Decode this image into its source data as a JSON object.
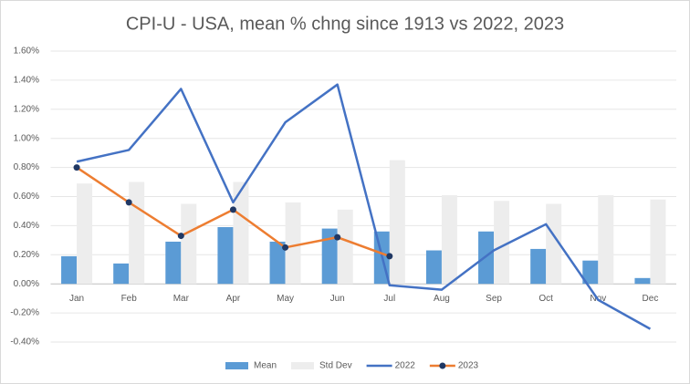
{
  "chart_data": {
    "type": "bar_line",
    "title": "CPI-U - USA, mean % chng since 1913 vs 2022, 2023",
    "categories": [
      "Jan",
      "Feb",
      "Mar",
      "Apr",
      "May",
      "Jun",
      "Jul",
      "Aug",
      "Sep",
      "Oct",
      "Nov",
      "Dec"
    ],
    "series": [
      {
        "name": "Mean",
        "type": "bar",
        "color": "#5b9bd5",
        "values": [
          0.19,
          0.14,
          0.29,
          0.39,
          0.29,
          0.38,
          0.36,
          0.23,
          0.36,
          0.24,
          0.16,
          0.04
        ]
      },
      {
        "name": "Std Dev",
        "type": "bar",
        "color": "#ededed",
        "values": [
          0.69,
          0.7,
          0.55,
          0.7,
          0.56,
          0.51,
          0.85,
          0.61,
          0.57,
          0.55,
          0.61,
          0.58
        ]
      },
      {
        "name": "2022",
        "type": "line",
        "color": "#4472c4",
        "values": [
          0.84,
          0.92,
          1.34,
          0.56,
          1.11,
          1.37,
          -0.01,
          -0.04,
          0.23,
          0.41,
          -0.11,
          -0.31
        ]
      },
      {
        "name": "2023",
        "type": "line",
        "color": "#ed7d31",
        "marker_color": "#203864",
        "values": [
          0.8,
          0.56,
          0.33,
          0.51,
          0.25,
          0.32,
          0.19,
          null,
          null,
          null,
          null,
          null
        ]
      }
    ],
    "ylim": [
      -0.4,
      1.6
    ],
    "yticks": [
      {
        "value": -0.4,
        "label": "-0.40%"
      },
      {
        "value": -0.2,
        "label": "-0.20%"
      },
      {
        "value": 0,
        "label": "0.00%"
      },
      {
        "value": 0.2,
        "label": "0.20%"
      },
      {
        "value": 0.4,
        "label": "0.40%"
      },
      {
        "value": 0.6,
        "label": "0.60%"
      },
      {
        "value": 0.8,
        "label": "0.80%"
      },
      {
        "value": 1.0,
        "label": "1.00%"
      },
      {
        "value": 1.2,
        "label": "1.20%"
      },
      {
        "value": 1.4,
        "label": "1.40%"
      },
      {
        "value": 1.6,
        "label": "1.60%"
      }
    ],
    "grid": true,
    "legend": "bottom"
  }
}
